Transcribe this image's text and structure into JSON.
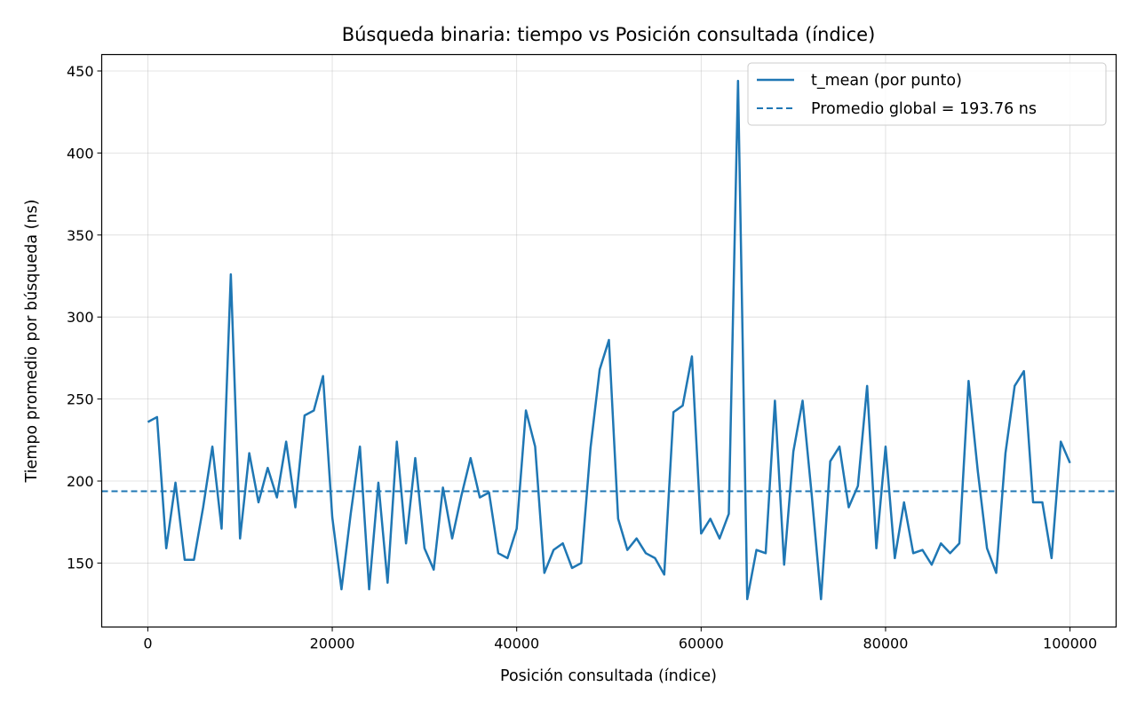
{
  "chart_data": {
    "type": "line",
    "title": "Búsqueda binaria: tiempo vs Posición consultada (índice)",
    "xlabel": "Posición consultada (índice)",
    "ylabel": "Tiempo promedio por búsqueda (ns)",
    "xlim": [
      -5000,
      105000
    ],
    "ylim": [
      111,
      460
    ],
    "xticks": [
      0,
      20000,
      40000,
      60000,
      80000,
      100000
    ],
    "yticks": [
      150,
      200,
      250,
      300,
      350,
      400,
      450
    ],
    "grid": true,
    "legend_position": "upper right",
    "series": [
      {
        "name": "t_mean (por punto)",
        "style": "solid",
        "color": "#1f77b4",
        "x": [
          0,
          1000,
          2000,
          3000,
          4000,
          5000,
          6000,
          7000,
          8000,
          9000,
          10000,
          11000,
          12000,
          13000,
          14000,
          15000,
          16000,
          17000,
          18000,
          19000,
          20000,
          21000,
          22000,
          23000,
          24000,
          25000,
          26000,
          27000,
          28000,
          29000,
          30000,
          31000,
          32000,
          33000,
          34000,
          35000,
          36000,
          37000,
          38000,
          39000,
          40000,
          41000,
          42000,
          43000,
          44000,
          45000,
          46000,
          47000,
          48000,
          49000,
          50000,
          51000,
          52000,
          53000,
          54000,
          55000,
          56000,
          57000,
          58000,
          59000,
          60000,
          61000,
          62000,
          63000,
          64000,
          65000,
          66000,
          67000,
          68000,
          69000,
          70000,
          71000,
          72000,
          73000,
          74000,
          75000,
          76000,
          77000,
          78000,
          79000,
          80000,
          81000,
          82000,
          83000,
          84000,
          85000,
          86000,
          87000,
          88000,
          89000,
          90000,
          91000,
          92000,
          93000,
          94000,
          95000,
          96000,
          97000,
          98000,
          99000,
          100000
        ],
        "y": [
          236,
          239,
          159,
          199,
          152,
          152,
          184,
          221,
          171,
          326,
          165,
          217,
          187,
          208,
          190,
          224,
          184,
          240,
          243,
          264,
          178,
          134,
          180,
          221,
          134,
          199,
          138,
          224,
          162,
          214,
          159,
          146,
          196,
          165,
          191,
          214,
          190,
          193,
          156,
          153,
          171,
          243,
          221,
          144,
          158,
          162,
          147,
          150,
          220,
          268,
          286,
          177,
          158,
          165,
          156,
          153,
          143,
          242,
          246,
          276,
          168,
          177,
          165,
          180,
          444,
          128,
          158,
          156,
          249,
          149,
          218,
          249,
          191,
          128,
          212,
          221,
          184,
          197,
          258,
          159,
          221,
          153,
          187,
          156,
          158,
          149,
          162,
          156,
          162,
          261,
          206,
          159,
          144,
          217,
          258,
          267,
          187,
          187,
          153,
          224,
          211
        ]
      },
      {
        "name": "Promedio global = 193.76 ns",
        "style": "dashed",
        "color": "#1f77b4",
        "constant_y": 193.76
      }
    ]
  }
}
